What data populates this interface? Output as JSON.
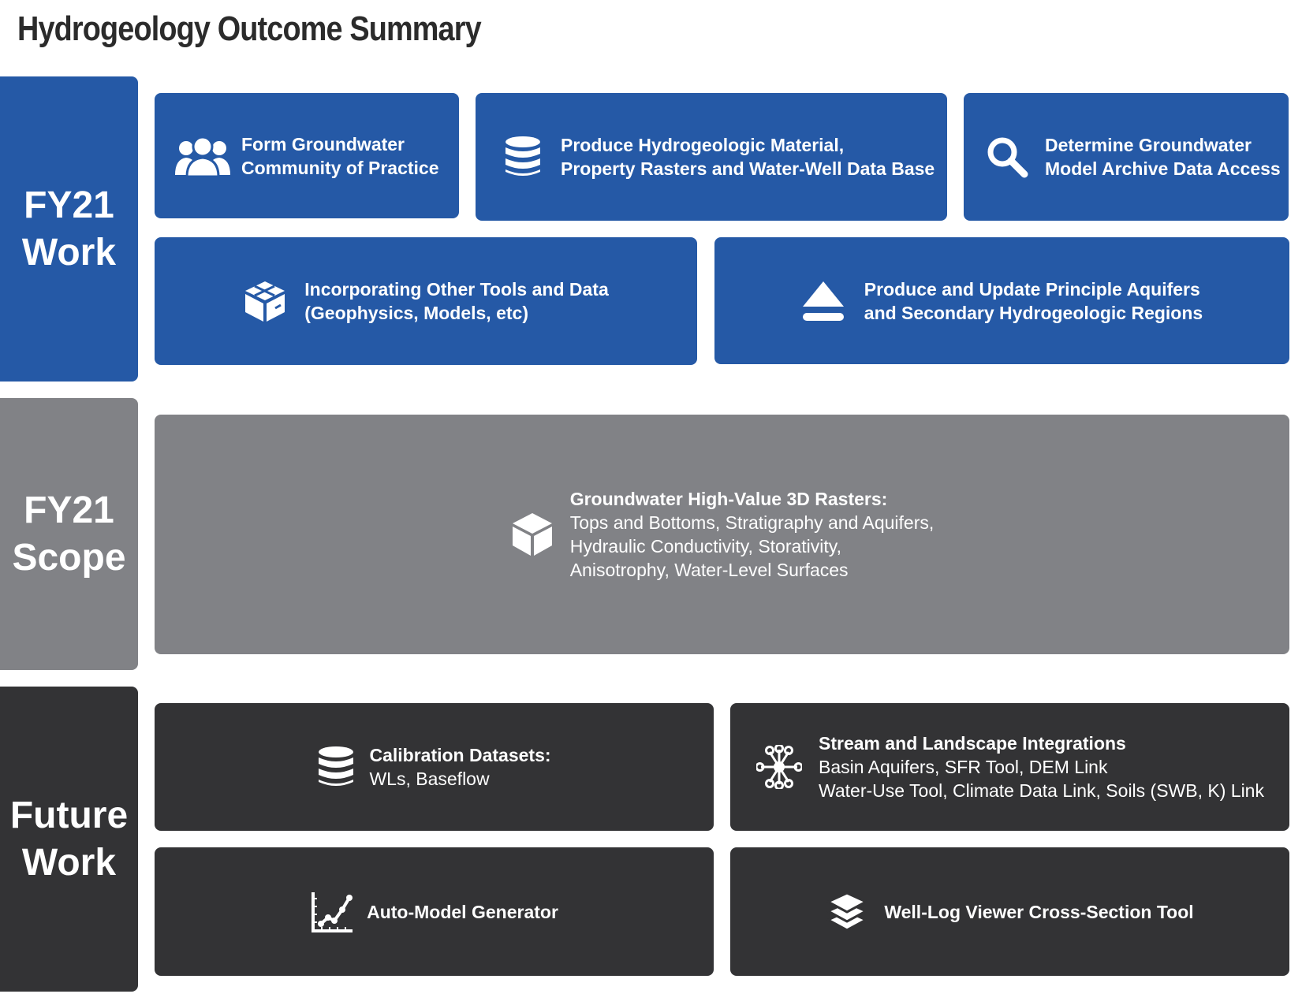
{
  "title": "Hydrogeology Outcome Summary",
  "colors": {
    "work": "#2559a6",
    "scope": "#818286",
    "future": "#333335",
    "text": "#ffffff",
    "title": "#2b2b2b"
  },
  "rows": {
    "fy21_work": {
      "label_line1": "FY21",
      "label_line2": "Work",
      "cards": [
        {
          "icon": "users-icon",
          "line1": "Form Groundwater",
          "line2": "Community of Practice"
        },
        {
          "icon": "database-icon",
          "line1": "Produce Hydrogeologic Material,",
          "line2": "Property Rasters and Water-Well Data Base"
        },
        {
          "icon": "search-icon",
          "line1": "Determine Groundwater",
          "line2": "Model Archive Data Access"
        },
        {
          "icon": "boxes-icon",
          "line1": "Incorporating Other Tools and Data",
          "line2": "(Geophysics, Models, etc)"
        },
        {
          "icon": "eject-icon",
          "line1": "Produce and Update Principle Aquifers",
          "line2": "and Secondary Hydrogeologic Regions"
        }
      ]
    },
    "fy21_scope": {
      "label_line1": "FY21",
      "label_line2": "Scope",
      "card": {
        "icon": "cube-icon",
        "heading": "Groundwater High-Value 3D Rasters:",
        "line1": "Tops and Bottoms, Stratigraphy and Aquifers,",
        "line2": "Hydraulic Conductivity, Storativity,",
        "line3": "Anisotrophy, Water-Level Surfaces"
      }
    },
    "future_work": {
      "label_line1": "Future",
      "label_line2": "Work",
      "cards": [
        {
          "icon": "database-icon",
          "heading": "Calibration Datasets:",
          "line1": "WLs, Baseflow"
        },
        {
          "icon": "network-icon",
          "heading": "Stream and Landscape Integrations",
          "line1": "Basin Aquifers, SFR Tool, DEM Link",
          "line2": "Water-Use Tool, Climate Data Link, Soils (SWB, K) Link"
        },
        {
          "icon": "chart-line-icon",
          "heading": "Auto-Model Generator"
        },
        {
          "icon": "layers-icon",
          "heading": "Well-Log Viewer Cross-Section Tool"
        }
      ]
    }
  }
}
